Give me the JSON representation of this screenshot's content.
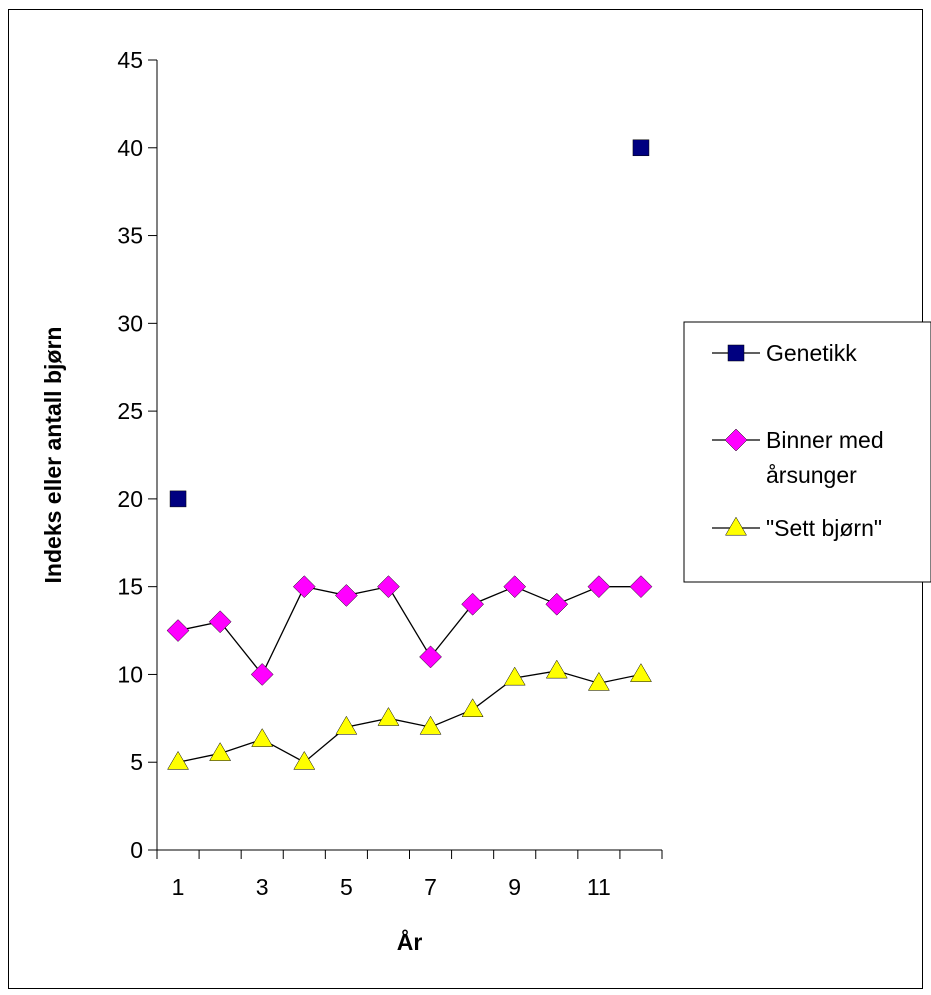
{
  "chart_data": {
    "type": "line",
    "title": "",
    "xlabel": "År",
    "ylabel": "Indeks eller antall bjørn",
    "xlim": [
      0.5,
      12.5
    ],
    "ylim": [
      0,
      45
    ],
    "x_ticks": [
      1,
      3,
      5,
      7,
      9,
      11
    ],
    "y_ticks": [
      0,
      5,
      10,
      15,
      20,
      25,
      30,
      35,
      40,
      45
    ],
    "grid": false,
    "legend_position": "right",
    "series": [
      {
        "name": "Genetikk",
        "marker": "square",
        "color": "#000080",
        "line": false,
        "x": [
          1,
          12
        ],
        "y": [
          20,
          40
        ]
      },
      {
        "name": "Binner med årsunger",
        "marker": "diamond",
        "color": "#ff00ff",
        "line": true,
        "x": [
          1,
          2,
          3,
          4,
          5,
          6,
          7,
          8,
          9,
          10,
          11,
          12
        ],
        "y": [
          12.5,
          13,
          10,
          15,
          14.5,
          15,
          11,
          14,
          15,
          14,
          15,
          15
        ]
      },
      {
        "name": "\"Sett bjørn\"",
        "marker": "triangle",
        "color": "#ffff00",
        "line": true,
        "x": [
          1,
          2,
          3,
          4,
          5,
          6,
          7,
          8,
          9,
          10,
          11,
          12
        ],
        "y": [
          5,
          5.5,
          6.3,
          5,
          7,
          7.5,
          7,
          8,
          9.8,
          10.2,
          9.5,
          10
        ]
      }
    ],
    "legend_lines": [
      [
        "Genetikk"
      ],
      [
        "Binner med",
        "årsunger"
      ],
      [
        "\"Sett bjørn\""
      ]
    ]
  }
}
